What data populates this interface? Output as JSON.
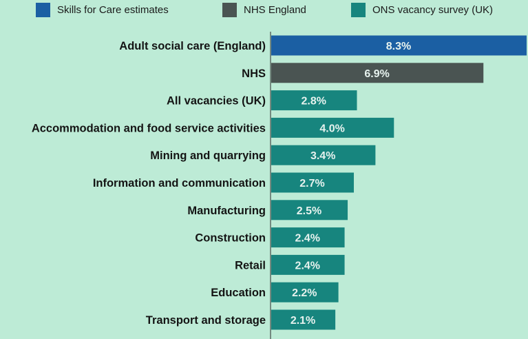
{
  "legend": [
    {
      "label": "Skills for Care estimates",
      "color": "#1b5fa3"
    },
    {
      "label": "NHS England",
      "color": "#4a5452"
    },
    {
      "label": "ONS vacancy survey (UK)",
      "color": "#17857e"
    }
  ],
  "colors": {
    "background": "#bdebd6",
    "axis": "#2a2a2a",
    "bar_label": "#e6f2ee"
  },
  "chart_data": {
    "type": "bar",
    "orientation": "horizontal",
    "xlim": [
      0,
      8.3
    ],
    "grid": false,
    "legend_position": "top",
    "categories": [
      "Adult social care (England)",
      "NHS",
      "All vacancies (UK)",
      "Accommodation and food service activities",
      "Mining and quarrying",
      "Information and communication",
      "Manufacturing",
      "Construction",
      "Retail",
      "Education",
      "Transport and storage"
    ],
    "values": [
      8.3,
      6.9,
      2.8,
      4.0,
      3.4,
      2.7,
      2.5,
      2.4,
      2.4,
      2.2,
      2.1
    ],
    "value_labels": [
      "8.3%",
      "6.9%",
      "2.8%",
      "4.0%",
      "3.4%",
      "2.7%",
      "2.5%",
      "2.4%",
      "2.4%",
      "2.2%",
      "2.1%"
    ],
    "sources": [
      "Skills for Care estimates",
      "NHS England",
      "ONS vacancy survey (UK)",
      "ONS vacancy survey (UK)",
      "ONS vacancy survey (UK)",
      "ONS vacancy survey (UK)",
      "ONS vacancy survey (UK)",
      "ONS vacancy survey (UK)",
      "ONS vacancy survey (UK)",
      "ONS vacancy survey (UK)",
      "ONS vacancy survey (UK)"
    ]
  }
}
